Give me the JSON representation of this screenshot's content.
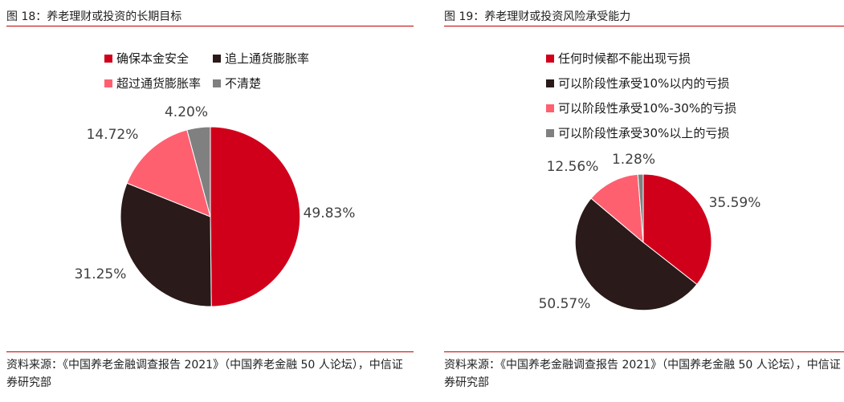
{
  "chart_data": [
    {
      "type": "pie",
      "figure_label": "图 18：养老理财或投资的长期目标",
      "source": "资料来源：《中国养老金融调查报告 2021》（中国养老金融 50 人论坛），中信证券研究部",
      "categories": [
        "确保本金安全",
        "追上通货膨胀率",
        "超过通货膨胀率",
        "不清楚"
      ],
      "values": [
        49.83,
        31.25,
        14.72,
        4.2
      ],
      "value_labels": [
        "49.83%",
        "31.25%",
        "14.72%",
        "4.20%"
      ],
      "colors": [
        "#d0001b",
        "#2a1a1a",
        "#ff6070",
        "#808080"
      ],
      "start_angle_deg": 0,
      "direction": "clockwise",
      "legend_placement": "top"
    },
    {
      "type": "pie",
      "figure_label": "图 19：养老理财或投资风险承受能力",
      "source": "资料来源：《中国养老金融调查报告 2021》（中国养老金融 50 人论坛），中信证券研究部",
      "categories": [
        "任何时候都不能出现亏损",
        "可以阶段性承受10%以内的亏损",
        "可以阶段性承受10%-30%的亏损",
        "可以阶段性承受30%以上的亏损"
      ],
      "values": [
        35.59,
        50.57,
        12.56,
        1.28
      ],
      "value_labels": [
        "35.59%",
        "50.57%",
        "12.56%",
        "1.28%"
      ],
      "colors": [
        "#d0001b",
        "#2a1a1a",
        "#ff6070",
        "#808080"
      ],
      "start_angle_deg": 0,
      "direction": "clockwise",
      "legend_placement": "top-left"
    }
  ]
}
